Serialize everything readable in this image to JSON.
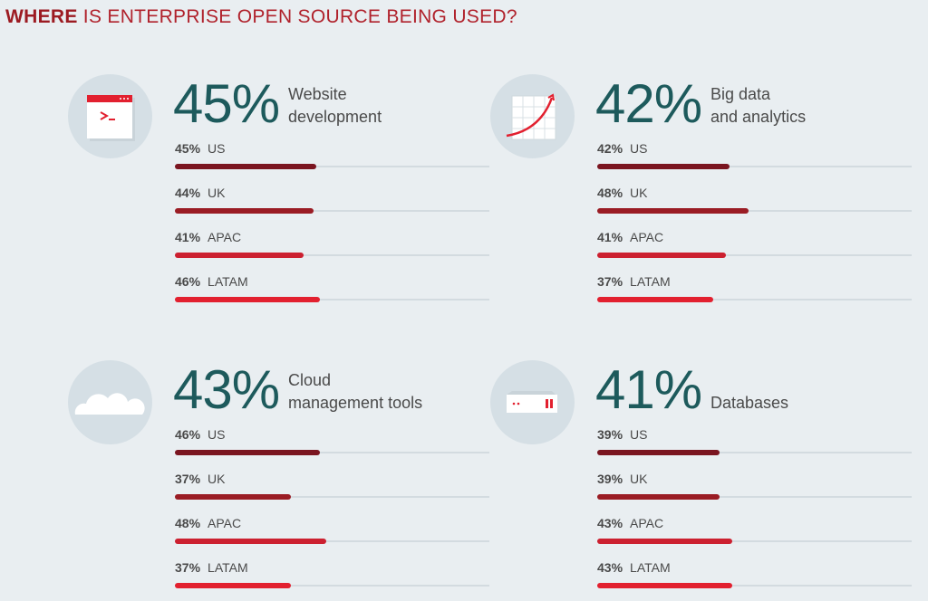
{
  "title": {
    "bold": "WHERE",
    "rest": " IS ENTERPRISE OPEN SOURCE BEING USED?"
  },
  "colors": {
    "US": "#7a1520",
    "UK": "#9a1c24",
    "APAC": "#cc2030",
    "LATAM": "#e2202f",
    "big_number": "#1d5a5c"
  },
  "chart_data": {
    "type": "bar",
    "title": "WHERE IS ENTERPRISE OPEN SOURCE BEING USED?",
    "xlim": [
      0,
      100
    ],
    "categories": [
      "US",
      "UK",
      "APAC",
      "LATAM"
    ],
    "panels": [
      {
        "icon": "terminal-window-icon",
        "overall": "45%",
        "label_lines": [
          "Website",
          "development"
        ],
        "series": [
          {
            "region": "US",
            "value": 45
          },
          {
            "region": "UK",
            "value": 44
          },
          {
            "region": "APAC",
            "value": 41
          },
          {
            "region": "LATAM",
            "value": 46
          }
        ]
      },
      {
        "icon": "growth-chart-icon",
        "overall": "42%",
        "label_lines": [
          "Big data",
          "and analytics"
        ],
        "series": [
          {
            "region": "US",
            "value": 42
          },
          {
            "region": "UK",
            "value": 48
          },
          {
            "region": "APAC",
            "value": 41
          },
          {
            "region": "LATAM",
            "value": 37
          }
        ]
      },
      {
        "icon": "cloud-icon",
        "overall": "43%",
        "label_lines": [
          "Cloud",
          "management tools"
        ],
        "series": [
          {
            "region": "US",
            "value": 46
          },
          {
            "region": "UK",
            "value": 37
          },
          {
            "region": "APAC",
            "value": 48
          },
          {
            "region": "LATAM",
            "value": 37
          }
        ]
      },
      {
        "icon": "server-icon",
        "overall": "41%",
        "label_lines": [
          "",
          "Databases"
        ],
        "series": [
          {
            "region": "US",
            "value": 39
          },
          {
            "region": "UK",
            "value": 39
          },
          {
            "region": "APAC",
            "value": 43
          },
          {
            "region": "LATAM",
            "value": 43
          }
        ]
      }
    ]
  }
}
